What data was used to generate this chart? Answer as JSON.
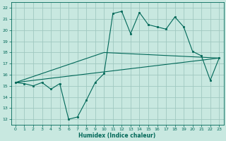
{
  "title": "",
  "xlabel": "Humidex (Indice chaleur)",
  "bg_color": "#c8e8e0",
  "grid_color": "#a0c8c0",
  "line_color": "#006858",
  "xlim": [
    -0.5,
    23.5
  ],
  "ylim": [
    11.5,
    22.5
  ],
  "xticks": [
    0,
    1,
    2,
    3,
    4,
    5,
    6,
    7,
    8,
    9,
    10,
    11,
    12,
    13,
    14,
    15,
    16,
    17,
    18,
    19,
    20,
    21,
    22,
    23
  ],
  "yticks": [
    12,
    13,
    14,
    15,
    16,
    17,
    18,
    19,
    20,
    21,
    22
  ],
  "line1_x": [
    0,
    1,
    2,
    3,
    4,
    5,
    6,
    7,
    8,
    9,
    10,
    11,
    12,
    13,
    14,
    15,
    16,
    17,
    18,
    19,
    20,
    21,
    22,
    23
  ],
  "line1_y": [
    15.3,
    15.2,
    15.0,
    15.3,
    14.7,
    15.2,
    12.0,
    12.2,
    13.7,
    15.3,
    16.1,
    21.5,
    21.7,
    19.7,
    21.6,
    20.5,
    20.3,
    20.1,
    21.2,
    20.3,
    18.1,
    17.7,
    15.5,
    17.5
  ],
  "line2_x": [
    0,
    23
  ],
  "line2_y": [
    15.3,
    17.5
  ],
  "line3_x": [
    0,
    10,
    23
  ],
  "line3_y": [
    15.3,
    18.0,
    17.5
  ]
}
